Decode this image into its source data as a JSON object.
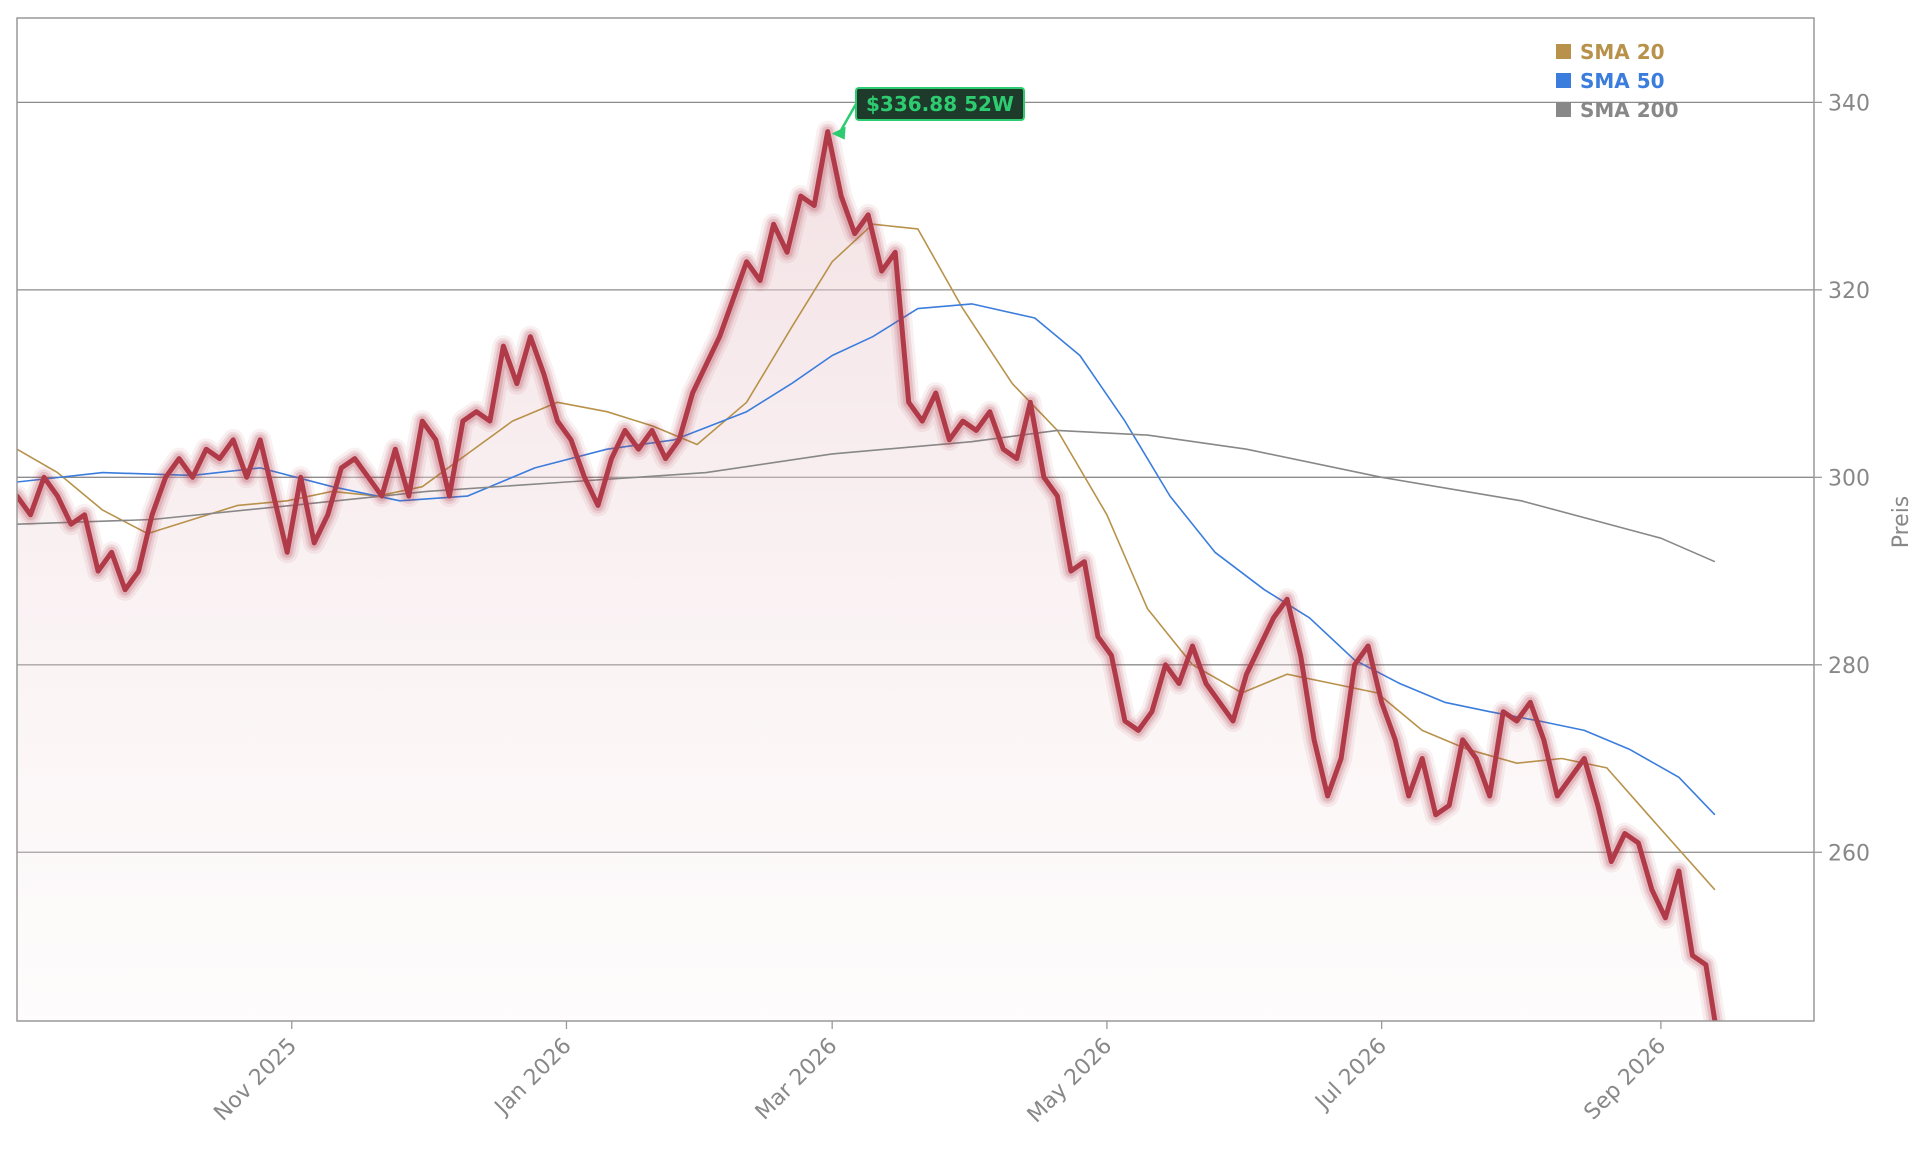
{
  "chart_data": {
    "type": "line",
    "title": "",
    "xlabel": "",
    "ylabel": "Preis",
    "ylim": [
      242,
      349
    ],
    "x_range": [
      "2025-09-01",
      "2026-10-05"
    ],
    "yticks": [
      260,
      280,
      300,
      320,
      340
    ],
    "xticks": [
      {
        "date": "2025-11-01",
        "label": "Nov 2025"
      },
      {
        "date": "2026-01-01",
        "label": "Jan 2026"
      },
      {
        "date": "2026-03-01",
        "label": "Mar 2026"
      },
      {
        "date": "2026-05-01",
        "label": "May 2026"
      },
      {
        "date": "2026-07-01",
        "label": "Jul 2026"
      },
      {
        "date": "2026-09-01",
        "label": "Sep 2026"
      }
    ],
    "grid": "horizontal",
    "legend_position": "top-right",
    "legend": [
      {
        "label": "SMA 20",
        "color": "#b8924a"
      },
      {
        "label": "SMA 50",
        "color": "#3b7ddd"
      },
      {
        "label": "SMA 200",
        "color": "#888888"
      }
    ],
    "annotation": {
      "label": "$336.88 52W",
      "x": "2026-02-28",
      "y": 336.88,
      "color": "#2ecc71"
    },
    "series": [
      {
        "name": "Preis",
        "color": "#b03a48",
        "points": [
          [
            "2025-09-01",
            298
          ],
          [
            "2025-09-04",
            296
          ],
          [
            "2025-09-07",
            300
          ],
          [
            "2025-09-10",
            298
          ],
          [
            "2025-09-13",
            295
          ],
          [
            "2025-09-16",
            296
          ],
          [
            "2025-09-19",
            290
          ],
          [
            "2025-09-22",
            292
          ],
          [
            "2025-09-25",
            288
          ],
          [
            "2025-09-28",
            290
          ],
          [
            "2025-10-01",
            296
          ],
          [
            "2025-10-04",
            300
          ],
          [
            "2025-10-07",
            302
          ],
          [
            "2025-10-10",
            300
          ],
          [
            "2025-10-13",
            303
          ],
          [
            "2025-10-16",
            302
          ],
          [
            "2025-10-19",
            304
          ],
          [
            "2025-10-22",
            300
          ],
          [
            "2025-10-25",
            304
          ],
          [
            "2025-10-28",
            298
          ],
          [
            "2025-10-31",
            292
          ],
          [
            "2025-11-03",
            300
          ],
          [
            "2025-11-06",
            293
          ],
          [
            "2025-11-09",
            296
          ],
          [
            "2025-11-12",
            301
          ],
          [
            "2025-11-15",
            302
          ],
          [
            "2025-11-18",
            300
          ],
          [
            "2025-11-21",
            298
          ],
          [
            "2025-11-24",
            303
          ],
          [
            "2025-11-27",
            298
          ],
          [
            "2025-11-30",
            306
          ],
          [
            "2025-12-03",
            304
          ],
          [
            "2025-12-06",
            298
          ],
          [
            "2025-12-09",
            306
          ],
          [
            "2025-12-12",
            307
          ],
          [
            "2025-12-15",
            306
          ],
          [
            "2025-12-18",
            314
          ],
          [
            "2025-12-21",
            310
          ],
          [
            "2025-12-24",
            315
          ],
          [
            "2025-12-27",
            311
          ],
          [
            "2025-12-30",
            306
          ],
          [
            "2026-01-02",
            304
          ],
          [
            "2026-01-05",
            300
          ],
          [
            "2026-01-08",
            297
          ],
          [
            "2026-01-11",
            302
          ],
          [
            "2026-01-14",
            305
          ],
          [
            "2026-01-17",
            303
          ],
          [
            "2026-01-20",
            305
          ],
          [
            "2026-01-23",
            302
          ],
          [
            "2026-01-26",
            304
          ],
          [
            "2026-01-29",
            309
          ],
          [
            "2026-02-01",
            312
          ],
          [
            "2026-02-04",
            315
          ],
          [
            "2026-02-07",
            319
          ],
          [
            "2026-02-10",
            323
          ],
          [
            "2026-02-13",
            321
          ],
          [
            "2026-02-16",
            327
          ],
          [
            "2026-02-19",
            324
          ],
          [
            "2026-02-22",
            330
          ],
          [
            "2026-02-25",
            329
          ],
          [
            "2026-02-28",
            336.88
          ],
          [
            "2026-03-03",
            330
          ],
          [
            "2026-03-06",
            326
          ],
          [
            "2026-03-09",
            328
          ],
          [
            "2026-03-12",
            322
          ],
          [
            "2026-03-15",
            324
          ],
          [
            "2026-03-18",
            308
          ],
          [
            "2026-03-21",
            306
          ],
          [
            "2026-03-24",
            309
          ],
          [
            "2026-03-27",
            304
          ],
          [
            "2026-03-30",
            306
          ],
          [
            "2026-04-02",
            305
          ],
          [
            "2026-04-05",
            307
          ],
          [
            "2026-04-08",
            303
          ],
          [
            "2026-04-11",
            302
          ],
          [
            "2026-04-14",
            308
          ],
          [
            "2026-04-17",
            300
          ],
          [
            "2026-04-20",
            298
          ],
          [
            "2026-04-23",
            290
          ],
          [
            "2026-04-26",
            291
          ],
          [
            "2026-04-29",
            283
          ],
          [
            "2026-05-02",
            281
          ],
          [
            "2026-05-05",
            274
          ],
          [
            "2026-05-08",
            273
          ],
          [
            "2026-05-11",
            275
          ],
          [
            "2026-05-14",
            280
          ],
          [
            "2026-05-17",
            278
          ],
          [
            "2026-05-20",
            282
          ],
          [
            "2026-05-23",
            278
          ],
          [
            "2026-05-26",
            276
          ],
          [
            "2026-05-29",
            274
          ],
          [
            "2026-06-01",
            279
          ],
          [
            "2026-06-04",
            282
          ],
          [
            "2026-06-07",
            285
          ],
          [
            "2026-06-10",
            287
          ],
          [
            "2026-06-13",
            281
          ],
          [
            "2026-06-16",
            272
          ],
          [
            "2026-06-19",
            266
          ],
          [
            "2026-06-22",
            270
          ],
          [
            "2026-06-25",
            280
          ],
          [
            "2026-06-28",
            282
          ],
          [
            "2026-07-01",
            276
          ],
          [
            "2026-07-04",
            272
          ],
          [
            "2026-07-07",
            266
          ],
          [
            "2026-07-10",
            270
          ],
          [
            "2026-07-13",
            264
          ],
          [
            "2026-07-16",
            265
          ],
          [
            "2026-07-19",
            272
          ],
          [
            "2026-07-22",
            270
          ],
          [
            "2026-07-25",
            266
          ],
          [
            "2026-07-28",
            275
          ],
          [
            "2026-07-31",
            274
          ],
          [
            "2026-08-03",
            276
          ],
          [
            "2026-08-06",
            272
          ],
          [
            "2026-08-09",
            266
          ],
          [
            "2026-08-12",
            268
          ],
          [
            "2026-08-15",
            270
          ],
          [
            "2026-08-18",
            265
          ],
          [
            "2026-08-21",
            259
          ],
          [
            "2026-08-24",
            262
          ],
          [
            "2026-08-27",
            261
          ],
          [
            "2026-08-30",
            256
          ],
          [
            "2026-09-02",
            253
          ],
          [
            "2026-09-05",
            258
          ],
          [
            "2026-09-08",
            249
          ],
          [
            "2026-09-11",
            248
          ],
          [
            "2026-09-13",
            242
          ]
        ]
      },
      {
        "name": "SMA 20",
        "color": "#b8924a",
        "points": [
          [
            "2025-09-01",
            303
          ],
          [
            "2025-09-10",
            300.5
          ],
          [
            "2025-09-20",
            296.5
          ],
          [
            "2025-09-30",
            294
          ],
          [
            "2025-10-10",
            295.5
          ],
          [
            "2025-10-20",
            297
          ],
          [
            "2025-10-31",
            297.5
          ],
          [
            "2025-11-10",
            298.5
          ],
          [
            "2025-11-20",
            298
          ],
          [
            "2025-11-30",
            299
          ],
          [
            "2025-12-10",
            302.5
          ],
          [
            "2025-12-20",
            306
          ],
          [
            "2025-12-30",
            308
          ],
          [
            "2026-01-10",
            307
          ],
          [
            "2026-01-20",
            305.5
          ],
          [
            "2026-01-30",
            303.5
          ],
          [
            "2026-02-10",
            308
          ],
          [
            "2026-02-20",
            316
          ],
          [
            "2026-03-01",
            323
          ],
          [
            "2026-03-10",
            327
          ],
          [
            "2026-03-20",
            326.5
          ],
          [
            "2026-03-30",
            318
          ],
          [
            "2026-04-10",
            310
          ],
          [
            "2026-04-20",
            305
          ],
          [
            "2026-05-01",
            296
          ],
          [
            "2026-05-10",
            286
          ],
          [
            "2026-05-20",
            280
          ],
          [
            "2026-05-31",
            277
          ],
          [
            "2026-06-10",
            279
          ],
          [
            "2026-06-20",
            278
          ],
          [
            "2026-06-30",
            277
          ],
          [
            "2026-07-10",
            273
          ],
          [
            "2026-07-20",
            271
          ],
          [
            "2026-07-31",
            269.5
          ],
          [
            "2026-08-10",
            270
          ],
          [
            "2026-08-20",
            269
          ],
          [
            "2026-08-31",
            263
          ],
          [
            "2026-09-13",
            256
          ]
        ]
      },
      {
        "name": "SMA 50",
        "color": "#3b7ddd",
        "points": [
          [
            "2025-09-01",
            299.5
          ],
          [
            "2025-09-20",
            300.5
          ],
          [
            "2025-10-10",
            300.2
          ],
          [
            "2025-10-25",
            301
          ],
          [
            "2025-11-10",
            299
          ],
          [
            "2025-11-25",
            297.5
          ],
          [
            "2025-12-10",
            298
          ],
          [
            "2025-12-25",
            301
          ],
          [
            "2026-01-10",
            303
          ],
          [
            "2026-01-25",
            304
          ],
          [
            "2026-02-10",
            307
          ],
          [
            "2026-02-20",
            310
          ],
          [
            "2026-03-01",
            313
          ],
          [
            "2026-03-10",
            315
          ],
          [
            "2026-03-20",
            318
          ],
          [
            "2026-04-01",
            318.5
          ],
          [
            "2026-04-15",
            317
          ],
          [
            "2026-04-25",
            313
          ],
          [
            "2026-05-05",
            306
          ],
          [
            "2026-05-15",
            298
          ],
          [
            "2026-05-25",
            292
          ],
          [
            "2026-06-05",
            288
          ],
          [
            "2026-06-15",
            285
          ],
          [
            "2026-06-25",
            280.5
          ],
          [
            "2026-07-05",
            278
          ],
          [
            "2026-07-15",
            276
          ],
          [
            "2026-07-25",
            275
          ],
          [
            "2026-08-05",
            274
          ],
          [
            "2026-08-15",
            273
          ],
          [
            "2026-08-25",
            271
          ],
          [
            "2026-09-05",
            268
          ],
          [
            "2026-09-13",
            264
          ]
        ]
      },
      {
        "name": "SMA 200",
        "color": "#888888",
        "points": [
          [
            "2025-09-01",
            295
          ],
          [
            "2025-10-01",
            295.5
          ],
          [
            "2025-11-01",
            297
          ],
          [
            "2025-12-01",
            298.5
          ],
          [
            "2026-01-01",
            299.5
          ],
          [
            "2026-02-01",
            300.5
          ],
          [
            "2026-03-01",
            302.5
          ],
          [
            "2026-04-01",
            303.8
          ],
          [
            "2026-04-20",
            305
          ],
          [
            "2026-05-10",
            304.5
          ],
          [
            "2026-06-01",
            303
          ],
          [
            "2026-07-01",
            300
          ],
          [
            "2026-08-01",
            297.5
          ],
          [
            "2026-09-01",
            293.5
          ],
          [
            "2026-09-13",
            291
          ]
        ]
      }
    ]
  }
}
